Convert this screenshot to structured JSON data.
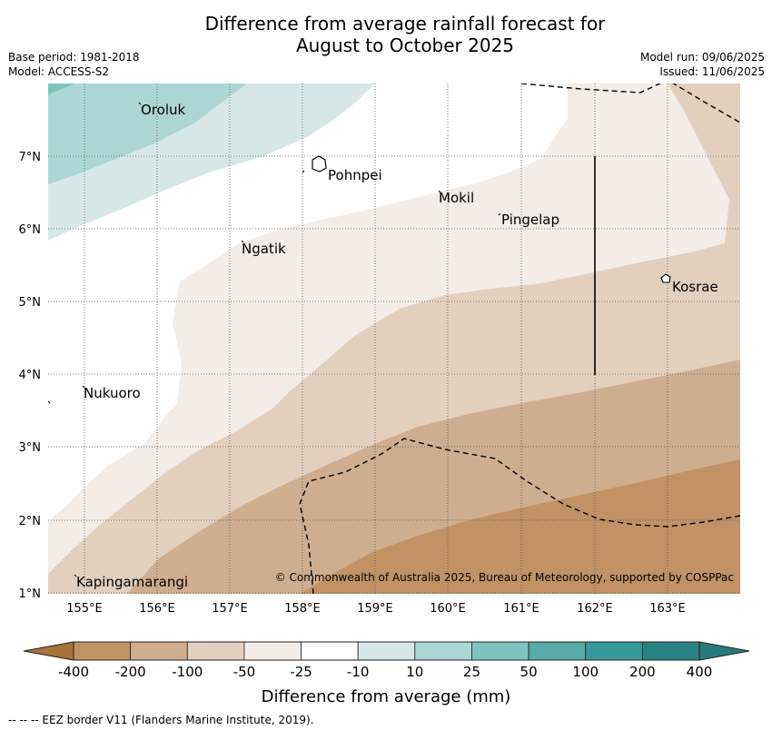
{
  "title_line1": "Difference from average rainfall forecast for",
  "title_line2": "August to October 2025",
  "meta": {
    "base_period": "Base period: 1981-2018",
    "model": "Model: ACCESS-S2",
    "model_run": "Model run: 09/06/2025",
    "issued": "Issued: 11/06/2025"
  },
  "axes": {
    "lon_ticks": [
      "155°E",
      "156°E",
      "157°E",
      "158°E",
      "159°E",
      "160°E",
      "161°E",
      "162°E",
      "163°E"
    ],
    "lat_ticks": [
      "7°N",
      "6°N",
      "5°N",
      "4°N",
      "3°N",
      "2°N",
      "1°N"
    ]
  },
  "places": {
    "oroluk": "Oroluk",
    "pohnpei": "Pohnpei",
    "mokil": "Mokil",
    "pingelap": "Pingelap",
    "ngatik": "Ngatik",
    "kosrae": "Kosrae",
    "nukuoro": "Nukuoro",
    "kapingamarangi": "Kapingamarangi"
  },
  "copyright": "© Commonwealth of Australia 2025, Bureau of Meteorology, supported by COSPPac",
  "colorbar": {
    "labels": [
      "-400",
      "-200",
      "-100",
      "-50",
      "-25",
      "-10",
      "10",
      "25",
      "50",
      "100",
      "200",
      "400"
    ],
    "title": "Difference from average (mm)",
    "colors": [
      "#b17a3e",
      "#c09264",
      "#cfae8f",
      "#e2cfbd",
      "#f4ece6",
      "#ffffff",
      "#d5e8e7",
      "#acd6d5",
      "#80c2bf",
      "#57aaa7",
      "#38999a",
      "#2a8383"
    ]
  },
  "footnote": "--  --  -- EEZ border V11 (Flanders Marine Institute, 2019)."
}
